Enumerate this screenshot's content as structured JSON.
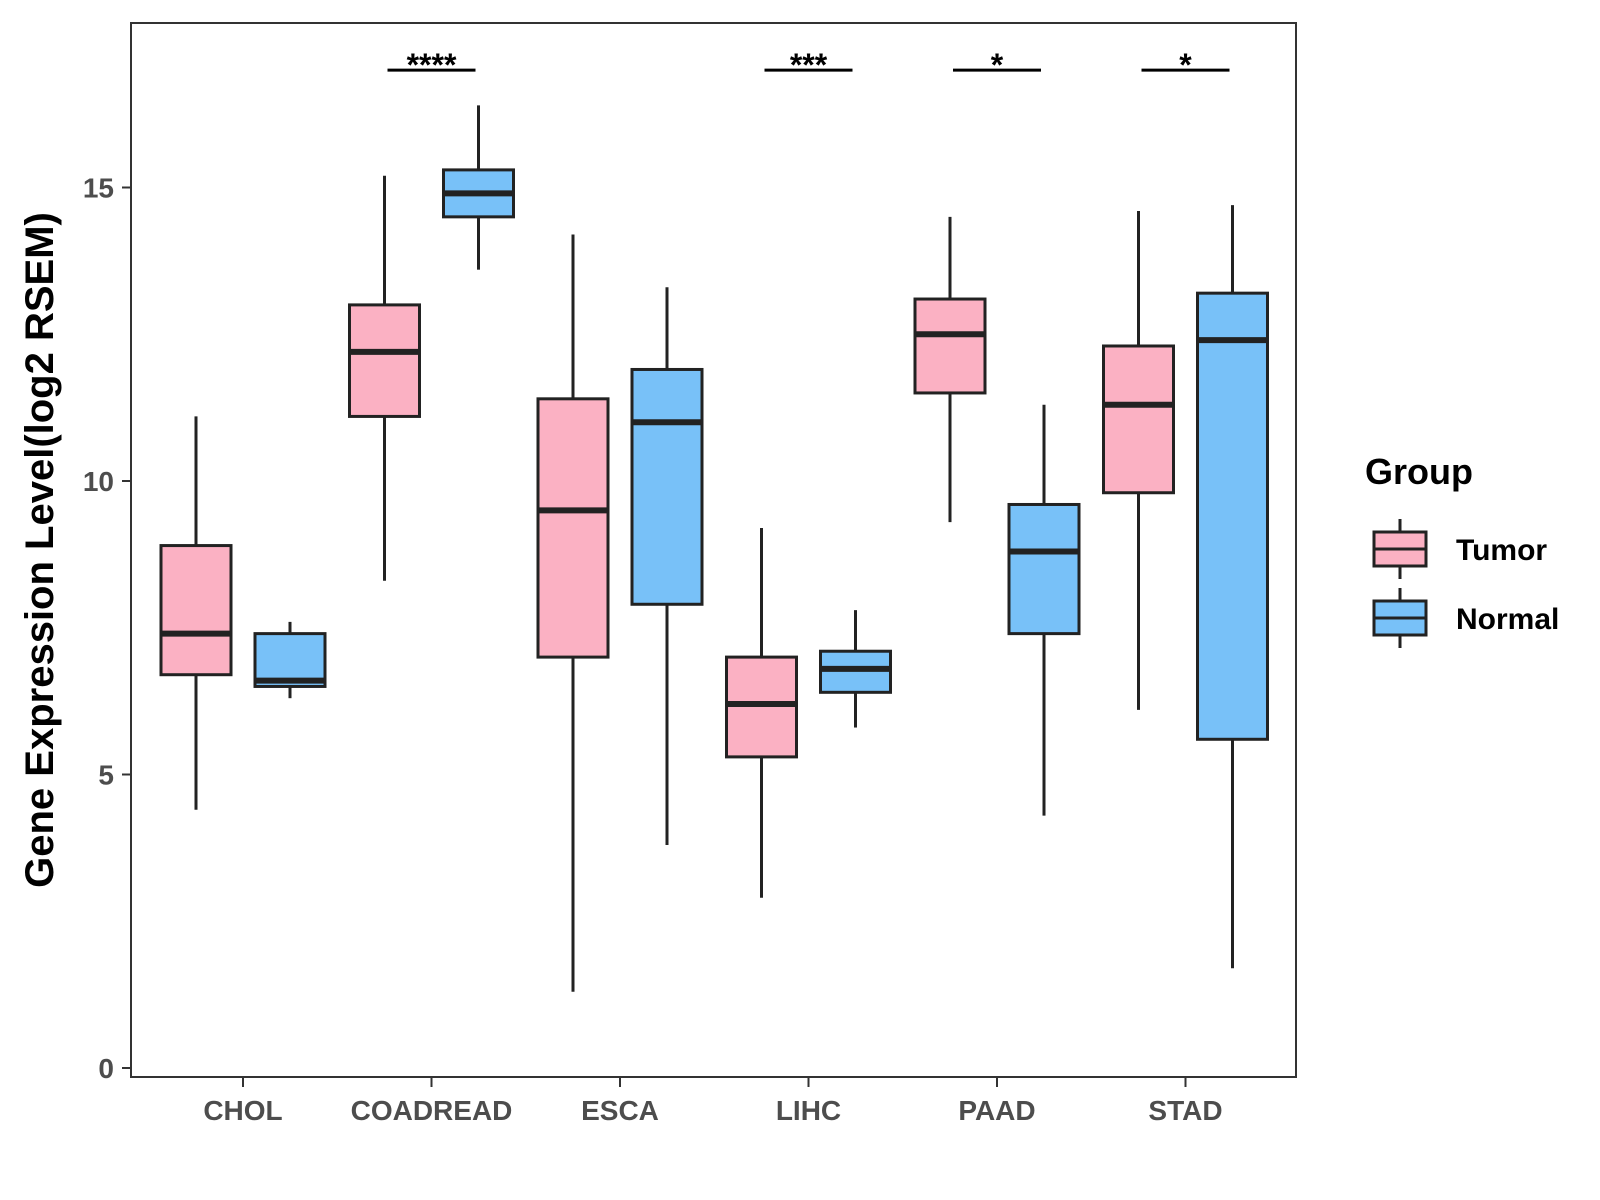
{
  "chart_data": {
    "type": "boxplot",
    "ylabel": "Gene Expression Level(log2 RSEM)",
    "xlabel": "",
    "ylim": [
      0,
      17.3
    ],
    "yticks": [
      0,
      5,
      10,
      15
    ],
    "categories": [
      "CHOL",
      "COADREAD",
      "ESCA",
      "LIHC",
      "PAAD",
      "STAD"
    ],
    "groups": [
      {
        "name": "Tumor",
        "color": "#FBB1C3"
      },
      {
        "name": "Normal",
        "color": "#78C1F8"
      }
    ],
    "legend": {
      "title": "Group",
      "position": "right"
    },
    "series": [
      {
        "name": "Tumor",
        "boxes": [
          {
            "category": "CHOL",
            "min": 4.4,
            "q1": 6.7,
            "median": 7.4,
            "q3": 8.9,
            "max": 11.1
          },
          {
            "category": "COADREAD",
            "min": 8.3,
            "q1": 11.1,
            "median": 12.2,
            "q3": 13.0,
            "max": 15.2
          },
          {
            "category": "ESCA",
            "min": 1.3,
            "q1": 7.0,
            "median": 9.5,
            "q3": 11.4,
            "max": 14.2
          },
          {
            "category": "LIHC",
            "min": 2.9,
            "q1": 5.3,
            "median": 6.2,
            "q3": 7.0,
            "max": 9.2
          },
          {
            "category": "PAAD",
            "min": 9.3,
            "q1": 11.5,
            "median": 12.5,
            "q3": 13.1,
            "max": 14.5
          },
          {
            "category": "STAD",
            "min": 6.1,
            "q1": 9.8,
            "median": 11.3,
            "q3": 12.3,
            "max": 14.6
          }
        ]
      },
      {
        "name": "Normal",
        "boxes": [
          {
            "category": "CHOL",
            "min": 6.3,
            "q1": 6.5,
            "median": 6.6,
            "q3": 7.4,
            "max": 7.6
          },
          {
            "category": "COADREAD",
            "min": 13.6,
            "q1": 14.5,
            "median": 14.9,
            "q3": 15.3,
            "max": 16.4
          },
          {
            "category": "ESCA",
            "min": 3.8,
            "q1": 7.9,
            "median": 11.0,
            "q3": 11.9,
            "max": 13.3
          },
          {
            "category": "LIHC",
            "min": 5.8,
            "q1": 6.4,
            "median": 6.8,
            "q3": 7.1,
            "max": 7.8
          },
          {
            "category": "PAAD",
            "min": 4.3,
            "q1": 7.4,
            "median": 8.8,
            "q3": 9.6,
            "max": 11.3
          },
          {
            "category": "STAD",
            "min": 1.7,
            "q1": 5.6,
            "median": 12.4,
            "q3": 13.2,
            "max": 14.7
          }
        ]
      }
    ],
    "annotations": [
      {
        "category": "COADREAD",
        "label": "****",
        "y": 17.0
      },
      {
        "category": "LIHC",
        "label": "***",
        "y": 17.0
      },
      {
        "category": "PAAD",
        "label": "*",
        "y": 17.0
      },
      {
        "category": "STAD",
        "label": "*",
        "y": 17.0
      }
    ]
  }
}
